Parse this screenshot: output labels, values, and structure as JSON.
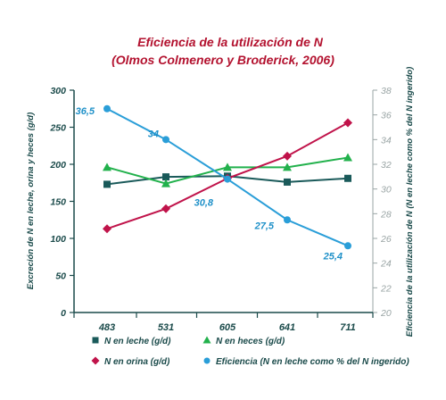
{
  "chart_data": {
    "type": "line",
    "title": "Eficiencia de la utilización de N",
    "subtitle": "(Olmos Colmenero y Broderick, 2006)",
    "categories": [
      "483",
      "531",
      "605",
      "641",
      "711"
    ],
    "ylabel": "Excreción de N en leche, orina y heces (g/d)",
    "ylabel_right": "Eficiencia de la utilización de N (N en leche como % del N ingerido)",
    "ylim": [
      0,
      300
    ],
    "yticks": [
      "0",
      "50",
      "100",
      "150",
      "200",
      "250",
      "300"
    ],
    "ylim_right": [
      20,
      38
    ],
    "yticks_right": [
      "20",
      "22",
      "24",
      "26",
      "28",
      "30",
      "32",
      "34",
      "36",
      "38"
    ],
    "grid": false,
    "legend_position": "bottom",
    "series": [
      {
        "name": "N en leche (g/d)",
        "axis": "left",
        "marker": "square",
        "color": "#1a5a5a",
        "values": [
          173,
          183,
          184,
          176,
          181
        ]
      },
      {
        "name": "N en heces (g/d)",
        "axis": "left",
        "marker": "triangle",
        "color": "#22b14c",
        "values": [
          196,
          174,
          196,
          196,
          209
        ]
      },
      {
        "name": "N en orina (g/d)",
        "axis": "left",
        "marker": "diamond",
        "color": "#c0134a",
        "values": [
          113,
          140,
          181,
          211,
          256
        ]
      },
      {
        "name": "Eficiencia (N en leche como % del N ingerido)",
        "axis": "right",
        "marker": "circle",
        "color": "#2a9ed8",
        "values": [
          36.5,
          34,
          30.8,
          27.5,
          25.4
        ],
        "labels": [
          "36,5",
          "34",
          "30,8",
          "27,5",
          "25,4"
        ]
      }
    ]
  }
}
